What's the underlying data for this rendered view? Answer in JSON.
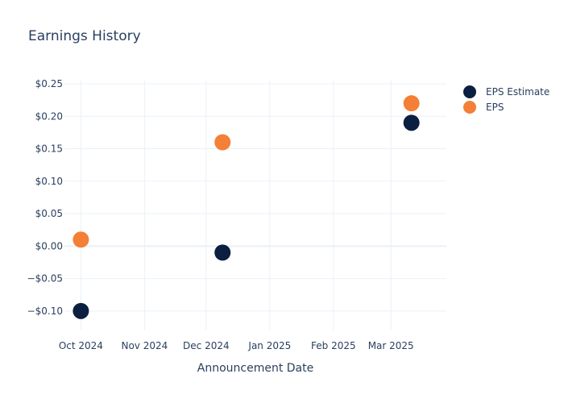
{
  "chart_data": {
    "type": "scatter",
    "title": "Earnings History",
    "xlabel": "Announcement Date",
    "ylabel": "",
    "x_tick_labels": [
      "Oct 2024",
      "Nov 2024",
      "Dec 2024",
      "Jan 2025",
      "Feb 2025",
      "Mar 2025"
    ],
    "x_tick_dates": [
      "2024-10-01",
      "2024-11-01",
      "2024-12-01",
      "2025-01-01",
      "2025-02-01",
      "2025-03-01"
    ],
    "xlim": [
      "2024-09-23",
      "2025-03-28"
    ],
    "y_tick_labels": [
      "$0.25",
      "$0.20",
      "$0.15",
      "$0.10",
      "$0.05",
      "$0.00",
      "−$0.05",
      "−$0.10"
    ],
    "y_tick_values": [
      0.25,
      0.2,
      0.15,
      0.1,
      0.05,
      0.0,
      -0.05,
      -0.1
    ],
    "ylim": [
      -0.13,
      0.255
    ],
    "grid": true,
    "legend_position": "top-right",
    "series": [
      {
        "name": "EPS Estimate",
        "color": "#0b1f40",
        "points": [
          {
            "x": "2024-10-01",
            "y": -0.1
          },
          {
            "x": "2024-12-09",
            "y": -0.01
          },
          {
            "x": "2025-03-11",
            "y": 0.19
          }
        ]
      },
      {
        "name": "EPS",
        "color": "#f47f36",
        "points": [
          {
            "x": "2024-10-01",
            "y": 0.01
          },
          {
            "x": "2024-12-09",
            "y": 0.16
          },
          {
            "x": "2025-03-11",
            "y": 0.22
          }
        ]
      }
    ]
  }
}
